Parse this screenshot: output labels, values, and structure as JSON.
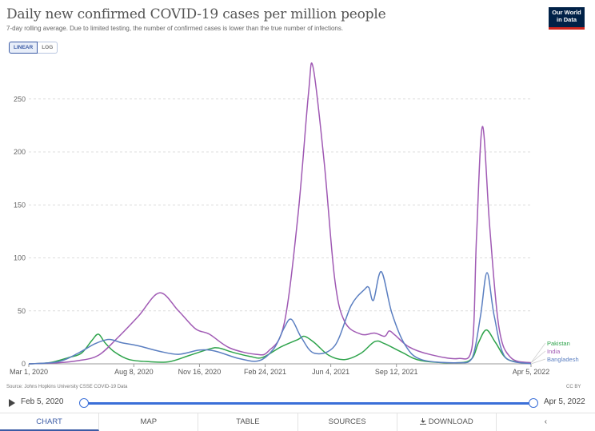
{
  "header": {
    "title": "Daily new confirmed COVID-19 cases per million people",
    "subtitle": "7-day rolling average. Due to limited testing, the number of confirmed cases is lower than the true number of infections.",
    "logo_text": "Our World in Data",
    "logo_color": "#002147",
    "logo_accent": "#ce261e"
  },
  "scale_toggle": {
    "linear": "LINEAR",
    "log": "LOG",
    "selected": "linear"
  },
  "chart_data": {
    "type": "line",
    "xlabel": "",
    "ylabel": "",
    "x_range": [
      "2020-03-01",
      "2022-04-05"
    ],
    "ylim": [
      0,
      280
    ],
    "y_ticks": [
      0,
      50,
      100,
      150,
      200,
      250
    ],
    "y_tick_labels": [
      "0",
      "50",
      "100",
      "150",
      "200",
      "250"
    ],
    "x_ticks": [
      "2020-03-01",
      "2020-08-08",
      "2020-11-16",
      "2021-02-24",
      "2021-06-04",
      "2021-09-12",
      "2022-04-05"
    ],
    "x_tick_labels": [
      "Mar 1, 2020",
      "Aug 8, 2020",
      "Nov 16, 2020",
      "Feb 24, 2021",
      "Jun 4, 2021",
      "Sep 12, 2021",
      "Apr 5, 2022"
    ],
    "grid": "horizontal-dashed",
    "legend_position": "right-end",
    "series": [
      {
        "name": "Pakistan",
        "color": "#2ea34b",
        "points": [
          [
            "2020-03-01",
            0
          ],
          [
            "2020-04-01",
            1
          ],
          [
            "2020-05-01",
            6
          ],
          [
            "2020-05-20",
            10
          ],
          [
            "2020-06-05",
            22
          ],
          [
            "2020-06-15",
            28
          ],
          [
            "2020-06-25",
            20
          ],
          [
            "2020-07-10",
            11
          ],
          [
            "2020-08-01",
            4
          ],
          [
            "2020-09-01",
            2
          ],
          [
            "2020-10-01",
            2
          ],
          [
            "2020-11-01",
            8
          ],
          [
            "2020-12-01",
            14
          ],
          [
            "2020-12-15",
            15
          ],
          [
            "2021-01-05",
            11
          ],
          [
            "2021-02-01",
            7
          ],
          [
            "2021-02-20",
            6
          ],
          [
            "2021-03-20",
            16
          ],
          [
            "2021-04-15",
            23
          ],
          [
            "2021-04-25",
            26
          ],
          [
            "2021-05-10",
            20
          ],
          [
            "2021-06-01",
            8
          ],
          [
            "2021-06-25",
            4
          ],
          [
            "2021-07-20",
            10
          ],
          [
            "2021-08-10",
            21
          ],
          [
            "2021-08-25",
            19
          ],
          [
            "2021-09-20",
            11
          ],
          [
            "2021-10-20",
            3
          ],
          [
            "2021-12-15",
            1
          ],
          [
            "2022-01-05",
            5
          ],
          [
            "2022-01-15",
            20
          ],
          [
            "2022-01-27",
            32
          ],
          [
            "2022-02-10",
            20
          ],
          [
            "2022-03-01",
            4
          ],
          [
            "2022-04-05",
            1
          ]
        ]
      },
      {
        "name": "India",
        "color": "#a05ab4",
        "points": [
          [
            "2020-03-01",
            0
          ],
          [
            "2020-04-15",
            1
          ],
          [
            "2020-05-15",
            3
          ],
          [
            "2020-06-15",
            8
          ],
          [
            "2020-07-15",
            25
          ],
          [
            "2020-08-15",
            45
          ],
          [
            "2020-09-16",
            67
          ],
          [
            "2020-10-15",
            50
          ],
          [
            "2020-11-10",
            33
          ],
          [
            "2020-12-01",
            28
          ],
          [
            "2021-01-01",
            15
          ],
          [
            "2021-02-10",
            9
          ],
          [
            "2021-03-01",
            12
          ],
          [
            "2021-03-25",
            38
          ],
          [
            "2021-04-15",
            140
          ],
          [
            "2021-05-01",
            255
          ],
          [
            "2021-05-08",
            280
          ],
          [
            "2021-05-25",
            190
          ],
          [
            "2021-06-10",
            80
          ],
          [
            "2021-06-25",
            40
          ],
          [
            "2021-07-20",
            28
          ],
          [
            "2021-08-10",
            29
          ],
          [
            "2021-08-25",
            26
          ],
          [
            "2021-09-01",
            31
          ],
          [
            "2021-09-10",
            27
          ],
          [
            "2021-10-01",
            16
          ],
          [
            "2021-11-01",
            9
          ],
          [
            "2021-12-15",
            5
          ],
          [
            "2022-01-05",
            15
          ],
          [
            "2022-01-12",
            120
          ],
          [
            "2022-01-21",
            224
          ],
          [
            "2022-02-01",
            130
          ],
          [
            "2022-02-15",
            35
          ],
          [
            "2022-03-05",
            6
          ],
          [
            "2022-04-05",
            1
          ]
        ]
      },
      {
        "name": "Bangladesh",
        "color": "#5b7fc1",
        "points": [
          [
            "2020-03-01",
            0
          ],
          [
            "2020-04-15",
            2
          ],
          [
            "2020-05-15",
            10
          ],
          [
            "2020-06-10",
            19
          ],
          [
            "2020-07-01",
            23
          ],
          [
            "2020-07-20",
            20
          ],
          [
            "2020-08-15",
            17
          ],
          [
            "2020-09-15",
            12
          ],
          [
            "2020-10-15",
            9
          ],
          [
            "2020-11-16",
            13
          ],
          [
            "2020-12-10",
            12
          ],
          [
            "2021-01-15",
            5
          ],
          [
            "2021-02-15",
            3
          ],
          [
            "2021-03-10",
            15
          ],
          [
            "2021-03-25",
            34
          ],
          [
            "2021-04-05",
            42
          ],
          [
            "2021-04-20",
            25
          ],
          [
            "2021-05-10",
            10
          ],
          [
            "2021-06-10",
            17
          ],
          [
            "2021-07-05",
            55
          ],
          [
            "2021-07-25",
            70
          ],
          [
            "2021-08-01",
            72
          ],
          [
            "2021-08-08",
            60
          ],
          [
            "2021-08-20",
            87
          ],
          [
            "2021-09-05",
            48
          ],
          [
            "2021-09-25",
            18
          ],
          [
            "2021-10-20",
            4
          ],
          [
            "2021-12-15",
            1
          ],
          [
            "2022-01-05",
            5
          ],
          [
            "2022-01-18",
            45
          ],
          [
            "2022-01-28",
            86
          ],
          [
            "2022-02-08",
            45
          ],
          [
            "2022-02-25",
            6
          ],
          [
            "2022-04-05",
            0
          ]
        ]
      }
    ]
  },
  "footer": {
    "source": "Source: Johns Hopkins University CSSE COVID-19 Data",
    "license": "CC BY"
  },
  "timeline": {
    "start_label": "Feb 5, 2020",
    "end_label": "Apr 5, 2022"
  },
  "tabs": [
    {
      "label": "CHART",
      "active": true
    },
    {
      "label": "MAP",
      "active": false
    },
    {
      "label": "TABLE",
      "active": false
    },
    {
      "label": "SOURCES",
      "active": false
    },
    {
      "label": "DOWNLOAD",
      "active": false
    },
    {
      "label": "",
      "icon": "share-icon",
      "active": false
    }
  ]
}
